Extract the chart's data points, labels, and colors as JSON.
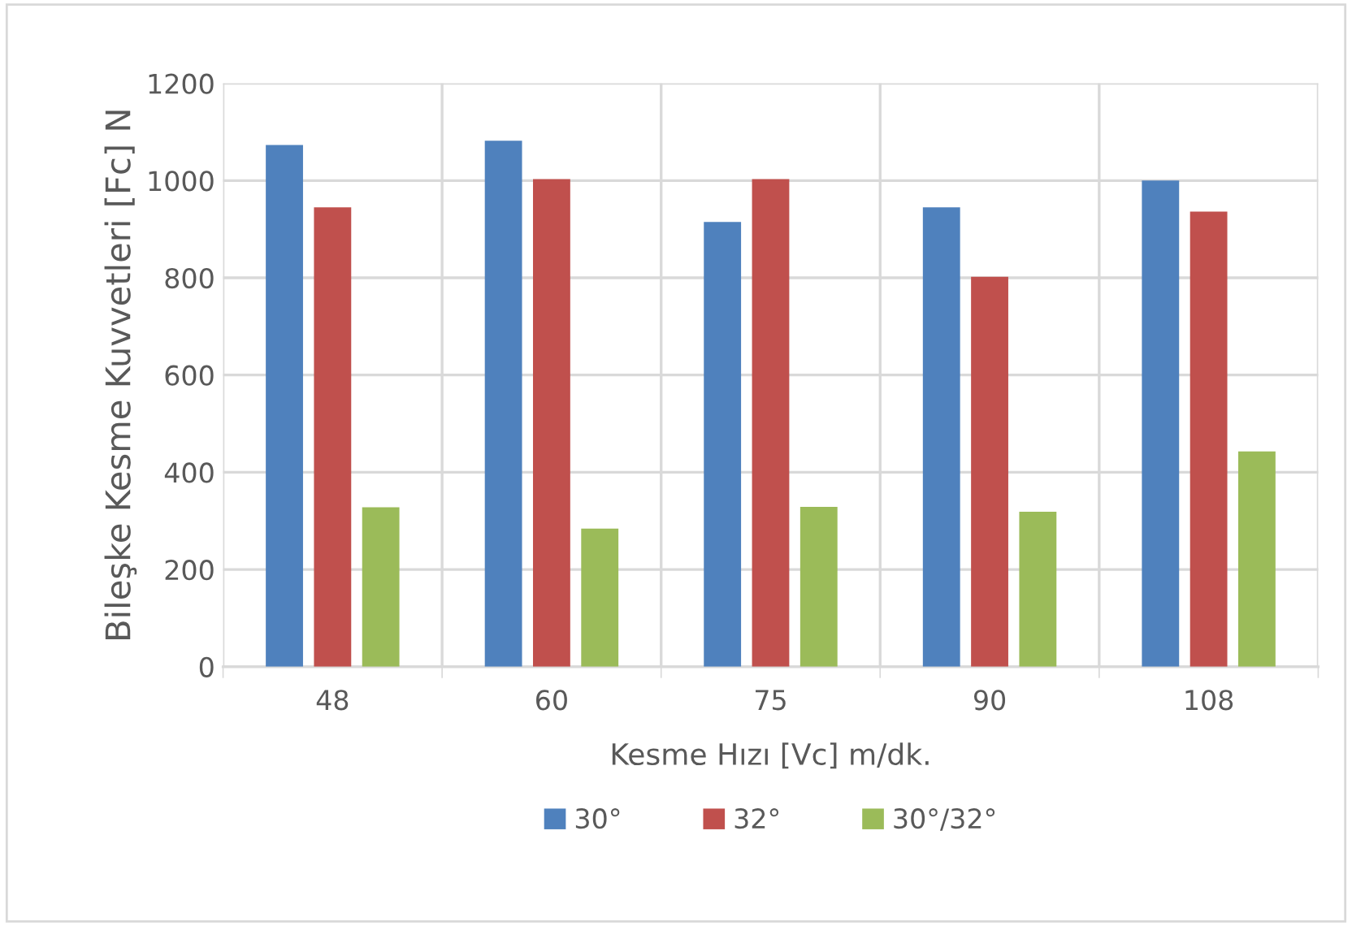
{
  "chart_data": {
    "type": "bar",
    "xlabel": "Kesme Hızı [Vc] m/dk.",
    "ylabel": "Bileşke Kesme Kuvvetleri [Fc] N",
    "categories": [
      "48",
      "60",
      "75",
      "90",
      "108"
    ],
    "series": [
      {
        "name": "30°",
        "color": "#4f81bd",
        "values": [
          1073,
          1082,
          915,
          945,
          1000
        ]
      },
      {
        "name": "32°",
        "color": "#c0504d",
        "values": [
          945,
          1003,
          1003,
          802,
          936
        ]
      },
      {
        "name": "30°/32°",
        "color": "#9bbb59",
        "values": [
          328,
          284,
          329,
          319,
          443
        ]
      }
    ],
    "ylim": [
      0,
      1200
    ],
    "yticks": [
      0,
      200,
      400,
      600,
      800,
      1000,
      1200
    ],
    "grid": true,
    "legend": "bottom"
  }
}
